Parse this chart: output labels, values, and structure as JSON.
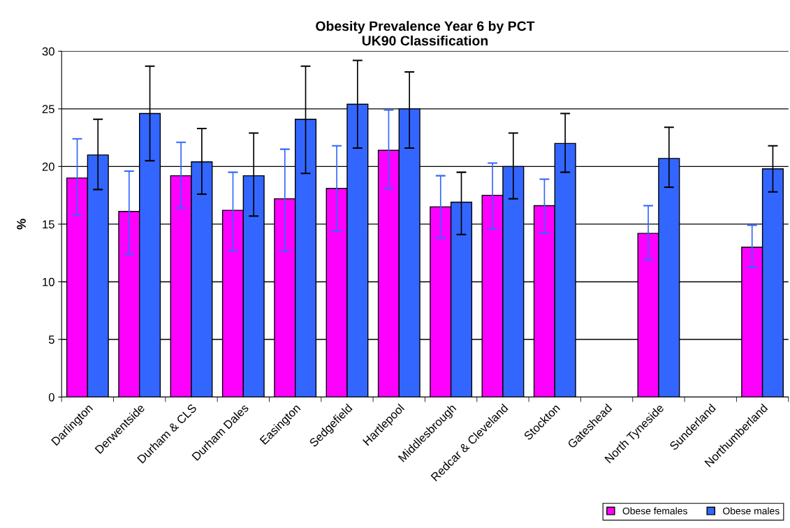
{
  "chart_data": {
    "type": "bar",
    "title": "Obesity Prevalence Year 6 by PCT\nUK90 Classification",
    "ylabel": "%",
    "categories": [
      "Darlington",
      "Derwentside",
      "Durham & CLS",
      "Durham Dales",
      "Easington",
      "Sedgefield",
      "Hartlepool",
      "Middlesbrough",
      "Redcar & Cleveland",
      "Stockton",
      "Gateshead",
      "North Tyneside",
      "Sunderland",
      "Northumberland"
    ],
    "series": [
      {
        "name": "Obese females",
        "color": "#ff00ff",
        "values": [
          19.0,
          16.1,
          19.2,
          16.2,
          17.2,
          18.1,
          21.4,
          16.5,
          17.5,
          16.6,
          null,
          14.2,
          null,
          13.0
        ],
        "errors": [
          [
            15.8,
            22.4
          ],
          [
            12.4,
            19.6
          ],
          [
            16.4,
            22.1
          ],
          [
            12.7,
            19.5
          ],
          [
            12.7,
            21.5
          ],
          [
            14.4,
            21.8
          ],
          [
            18.1,
            24.9
          ],
          [
            13.8,
            19.2
          ],
          [
            14.6,
            20.3
          ],
          [
            14.2,
            18.9
          ],
          null,
          [
            11.9,
            16.6
          ],
          null,
          [
            11.3,
            14.9
          ]
        ]
      },
      {
        "name": "Obese males",
        "color": "#3366ff",
        "values": [
          21.0,
          24.6,
          20.4,
          19.2,
          24.1,
          25.4,
          25.0,
          16.9,
          20.0,
          22.0,
          null,
          20.7,
          null,
          19.8
        ],
        "errors": [
          [
            18.0,
            24.1
          ],
          [
            20.5,
            28.7
          ],
          [
            17.6,
            23.3
          ],
          [
            15.7,
            22.9
          ],
          [
            19.4,
            28.7
          ],
          [
            21.6,
            29.2
          ],
          [
            21.6,
            28.2
          ],
          [
            14.1,
            19.5
          ],
          [
            17.2,
            22.9
          ],
          [
            19.5,
            24.6
          ],
          null,
          [
            18.2,
            23.4
          ],
          null,
          [
            17.8,
            21.8
          ]
        ]
      }
    ],
    "ylim": [
      0,
      30
    ],
    "yticks": [
      0,
      5,
      10,
      15,
      20,
      25,
      30
    ],
    "grid": "y",
    "legend": "bottom right"
  }
}
